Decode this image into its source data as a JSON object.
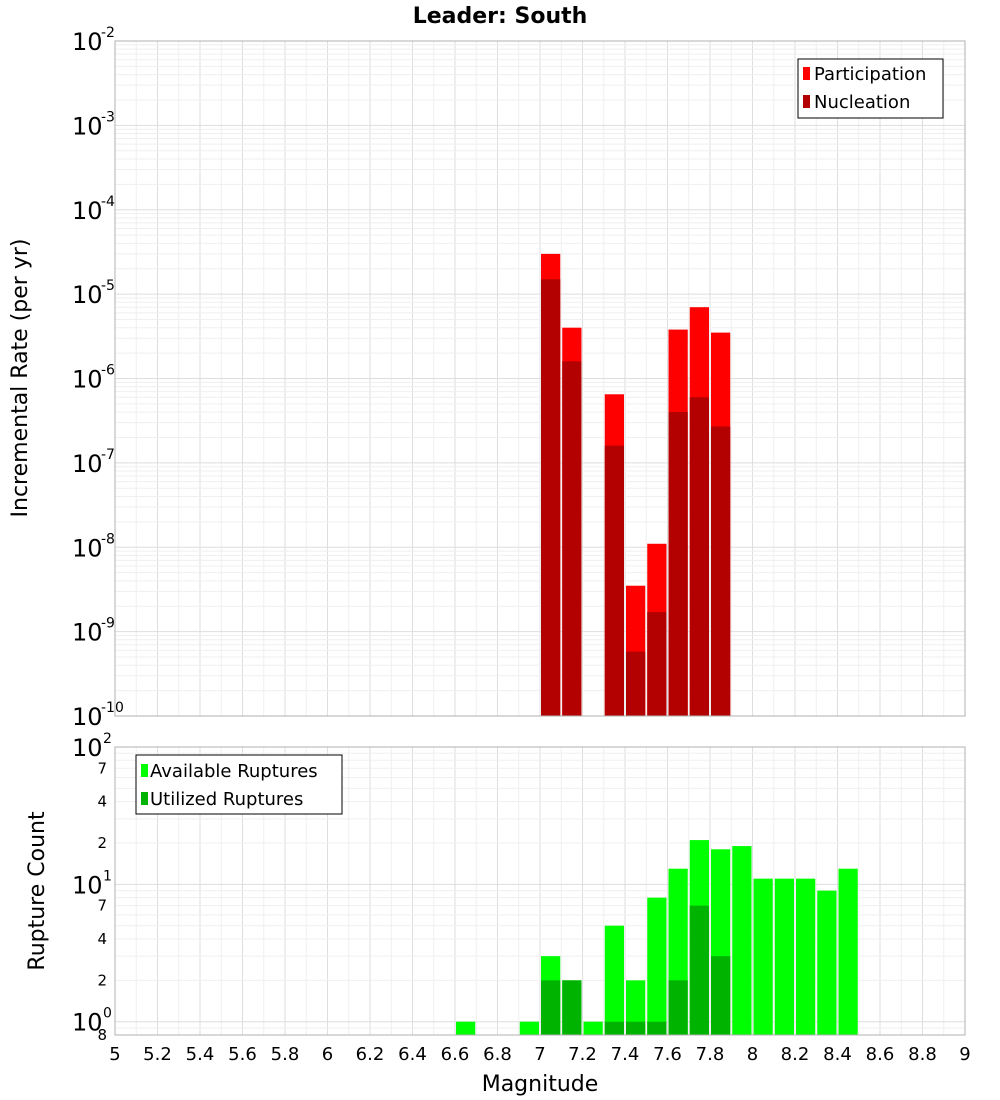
{
  "chart_data": [
    {
      "type": "bar",
      "title": "Leader: South",
      "xlabel": "",
      "ylabel": "Incremental Rate (per yr)",
      "yscale": "log",
      "ylim": [
        1e-10,
        0.01
      ],
      "xlim": [
        5,
        9
      ],
      "y_tick_labels": [
        {
          "base": "10",
          "exp": "-10"
        },
        {
          "base": "10",
          "exp": "-9"
        },
        {
          "base": "10",
          "exp": "-8"
        },
        {
          "base": "10",
          "exp": "-7"
        },
        {
          "base": "10",
          "exp": "-6"
        },
        {
          "base": "10",
          "exp": "-5"
        },
        {
          "base": "10",
          "exp": "-4"
        },
        {
          "base": "10",
          "exp": "-3"
        },
        {
          "base": "10",
          "exp": "-2"
        }
      ],
      "legend_position": "top-right",
      "grid": true,
      "series": [
        {
          "name": "Participation",
          "color": "#ff0000",
          "x": [
            7.05,
            7.15,
            7.35,
            7.45,
            7.55,
            7.65,
            7.75,
            7.85
          ],
          "values": [
            3e-05,
            4e-06,
            6.5e-07,
            3.5e-09,
            1.1e-08,
            3.8e-06,
            7e-06,
            3.5e-06
          ]
        },
        {
          "name": "Nucleation",
          "color": "#b30000",
          "x": [
            7.05,
            7.15,
            7.35,
            7.45,
            7.55,
            7.65,
            7.75,
            7.85
          ],
          "values": [
            1.5e-05,
            1.6e-06,
            1.6e-07,
            5.8e-10,
            1.7e-09,
            4e-07,
            6e-07,
            2.7e-07
          ]
        }
      ]
    },
    {
      "type": "bar",
      "title": "",
      "xlabel": "Magnitude",
      "ylabel": "Rupture Count",
      "yscale": "log",
      "ylim": [
        0.8,
        100
      ],
      "xlim": [
        5,
        9
      ],
      "x_tick_labels": [
        "5",
        "5.2",
        "5.4",
        "5.6",
        "5.8",
        "6",
        "6.2",
        "6.4",
        "6.6",
        "6.8",
        "7",
        "7.2",
        "7.4",
        "7.6",
        "7.8",
        "8",
        "8.2",
        "8.4",
        "8.6",
        "8.8",
        "9"
      ],
      "y_major_labels": [
        {
          "value": 1,
          "base": "10",
          "exp": "0"
        },
        {
          "value": 10,
          "base": "10",
          "exp": "1"
        },
        {
          "value": 100,
          "base": "10",
          "exp": "2"
        }
      ],
      "y_minor_labels": [
        {
          "value": 0.8,
          "label": "8"
        },
        {
          "value": 2,
          "label": "2"
        },
        {
          "value": 4,
          "label": "4"
        },
        {
          "value": 7,
          "label": "7"
        },
        {
          "value": 20,
          "label": "2"
        },
        {
          "value": 40,
          "label": "4"
        },
        {
          "value": 70,
          "label": "7"
        }
      ],
      "legend_position": "top-left",
      "grid": true,
      "series": [
        {
          "name": "Available Ruptures",
          "color": "#00ff00",
          "x": [
            6.65,
            6.95,
            7.05,
            7.15,
            7.25,
            7.35,
            7.45,
            7.55,
            7.65,
            7.75,
            7.85,
            7.95,
            8.05,
            8.15,
            8.25,
            8.35,
            8.45
          ],
          "values": [
            1,
            1,
            3,
            2,
            1,
            5,
            2,
            8,
            13,
            21,
            18,
            19,
            11,
            11,
            11,
            9,
            13
          ]
        },
        {
          "name": "Utilized Ruptures",
          "color": "#00b300",
          "x": [
            7.05,
            7.15,
            7.35,
            7.45,
            7.55,
            7.65,
            7.75,
            7.85
          ],
          "values": [
            2,
            2,
            1,
            1,
            1,
            2,
            7,
            3
          ]
        }
      ]
    }
  ]
}
